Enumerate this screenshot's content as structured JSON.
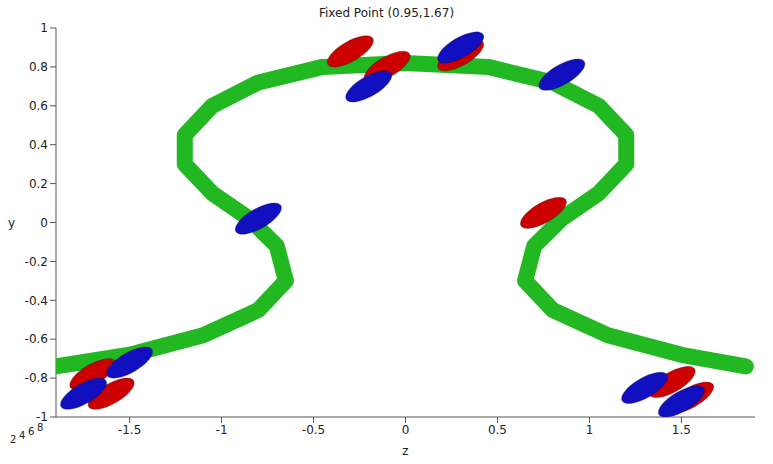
{
  "chart_data": {
    "type": "line",
    "title": "Fixed Point (0.95,1.67)",
    "x_label": "z",
    "y_label": "y",
    "xlim": [
      -1.9,
      1.9
    ],
    "xticks": [
      -1.5,
      -1,
      -0.5,
      0,
      0.5,
      1,
      1.5
    ],
    "ylim": [
      -1,
      1
    ],
    "yticks": [
      -1,
      -0.8,
      -0.6,
      -0.4,
      -0.2,
      0,
      0.2,
      0.4,
      0.6,
      0.8,
      1
    ],
    "depth_ticks": [
      2,
      4,
      6,
      8
    ],
    "grid": false,
    "series": [
      {
        "type": "line",
        "color": "#22b822",
        "x": [
          -1.9,
          -1.5,
          -1.1,
          -0.8,
          -0.65,
          -0.7,
          -0.85,
          -1.05,
          -1.2,
          -1.2,
          -1.05,
          -0.8,
          -0.45,
          0,
          0.45,
          0.8,
          1.05,
          1.2,
          1.2,
          1.05,
          0.85,
          0.7,
          0.65,
          0.8,
          1.1,
          1.5,
          1.85
        ],
        "values": [
          -0.74,
          -0.68,
          -0.58,
          -0.45,
          -0.3,
          -0.12,
          0.02,
          0.15,
          0.3,
          0.45,
          0.6,
          0.72,
          0.8,
          0.82,
          0.8,
          0.72,
          0.6,
          0.45,
          0.3,
          0.15,
          0.02,
          -0.12,
          -0.3,
          -0.45,
          -0.58,
          -0.68,
          -0.74
        ]
      },
      {
        "type": "scatter",
        "marker": "ellipse",
        "color": "#cc0000",
        "x": [
          0.75,
          -0.3,
          0.3,
          -0.1,
          1.45,
          1.55,
          -1.7,
          -1.6
        ],
        "values": [
          0.05,
          0.88,
          0.86,
          0.8,
          -0.82,
          -0.9,
          -0.78,
          -0.88
        ]
      },
      {
        "type": "scatter",
        "marker": "ellipse",
        "color": "#1010c0",
        "x": [
          -0.8,
          0.3,
          0.85,
          -0.2,
          1.3,
          1.5,
          -1.75,
          -1.5
        ],
        "values": [
          0.02,
          0.9,
          0.76,
          0.7,
          -0.85,
          -0.92,
          -0.88,
          -0.72
        ]
      }
    ]
  }
}
